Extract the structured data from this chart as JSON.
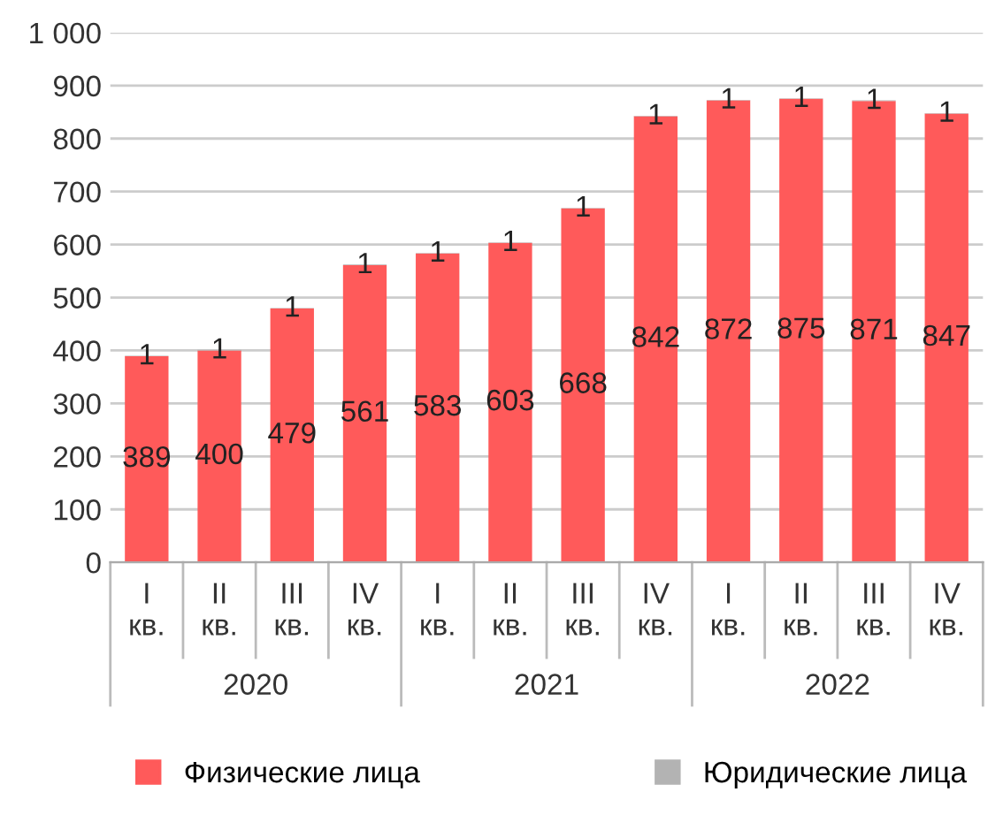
{
  "chart_data": {
    "type": "bar",
    "stacked": true,
    "categories": [
      "I кв.",
      "II кв.",
      "III кв.",
      "IV кв.",
      "I кв.",
      "II кв.",
      "III кв.",
      "IV кв.",
      "I кв.",
      "II кв.",
      "III кв.",
      "IV кв."
    ],
    "series": [
      {
        "name": "Физические лица",
        "color": "#ff5a5a",
        "values": [
          389,
          400,
          479,
          561,
          583,
          603,
          668,
          842,
          872,
          875,
          871,
          847
        ]
      },
      {
        "name": "Юридические лица",
        "color": "#b3b3b3",
        "values": [
          1,
          1,
          1,
          1,
          1,
          1,
          1,
          1,
          1,
          1,
          1,
          1
        ]
      }
    ],
    "annotations": [
      "2020",
      "2021",
      "2022"
    ],
    "ylim": [
      0,
      1000
    ],
    "yticks": [
      0,
      100,
      200,
      300,
      400,
      500,
      600,
      700,
      800,
      900,
      {
        "value": 1000,
        "label": "1 000"
      }
    ],
    "grid": "y",
    "legend": "bottom",
    "data_labels": true
  }
}
